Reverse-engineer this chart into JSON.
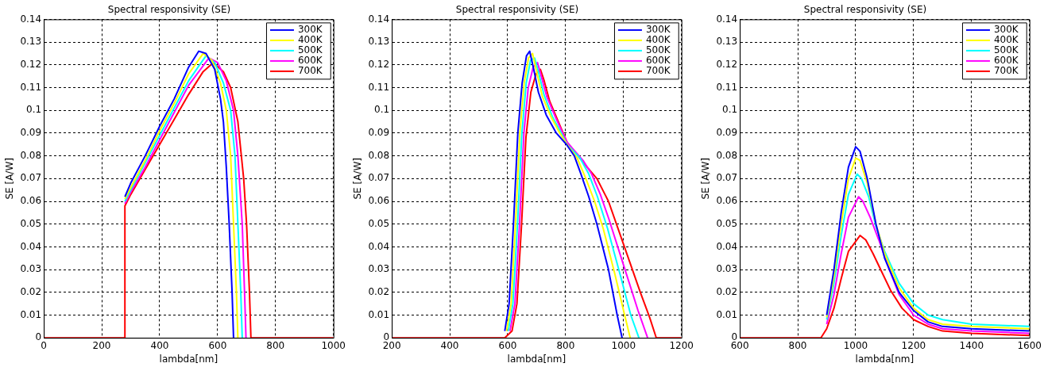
{
  "chart_data": [
    {
      "type": "line",
      "title": "Spectral responsivity (SE)",
      "xlabel": "lambda[nm]",
      "ylabel": "SE [A/W]",
      "xlim": [
        0,
        1000
      ],
      "ylim": [
        0,
        0.14
      ],
      "xticks": [
        0,
        200,
        400,
        600,
        800,
        1000
      ],
      "yticks": [
        0,
        0.01,
        0.02,
        0.03,
        0.04,
        0.05,
        0.06,
        0.07,
        0.08,
        0.09,
        0.1,
        0.11,
        0.12,
        0.13,
        0.14
      ],
      "grid": true,
      "legend": "top right",
      "series": [
        {
          "name": "300K",
          "color": "#0000ff",
          "x": [
            280,
            300,
            350,
            400,
            450,
            500,
            535,
            560,
            590,
            610,
            620,
            630,
            640,
            650,
            655
          ],
          "values": [
            0.062,
            0.068,
            0.08,
            0.093,
            0.105,
            0.119,
            0.126,
            0.125,
            0.118,
            0.105,
            0.095,
            0.075,
            0.05,
            0.02,
            0
          ]
        },
        {
          "name": "400K",
          "color": "#ffff00",
          "x": [
            280,
            300,
            350,
            400,
            450,
            500,
            550,
            580,
            610,
            630,
            645,
            655,
            665,
            670
          ],
          "values": [
            0.061,
            0.066,
            0.078,
            0.091,
            0.103,
            0.116,
            0.125,
            0.122,
            0.112,
            0.1,
            0.08,
            0.05,
            0.02,
            0
          ]
        },
        {
          "name": "500K",
          "color": "#00ffff",
          "x": [
            280,
            300,
            350,
            400,
            450,
            500,
            560,
            590,
            620,
            645,
            660,
            670,
            680,
            685
          ],
          "values": [
            0.06,
            0.065,
            0.077,
            0.089,
            0.101,
            0.113,
            0.124,
            0.121,
            0.112,
            0.1,
            0.08,
            0.05,
            0.02,
            0
          ]
        },
        {
          "name": "600K",
          "color": "#ff00ff",
          "x": [
            280,
            300,
            350,
            400,
            450,
            500,
            570,
            600,
            630,
            655,
            670,
            685,
            693,
            698
          ],
          "values": [
            0.059,
            0.064,
            0.075,
            0.087,
            0.099,
            0.111,
            0.123,
            0.121,
            0.113,
            0.1,
            0.08,
            0.05,
            0.02,
            0
          ]
        },
        {
          "name": "700K",
          "color": "#ff0000",
          "x": [
            0,
            280,
            280,
            300,
            350,
            400,
            450,
            500,
            550,
            585,
            620,
            645,
            670,
            690,
            700,
            710,
            715,
            1000
          ],
          "values": [
            0,
            0,
            0.058,
            0.063,
            0.074,
            0.085,
            0.096,
            0.107,
            0.117,
            0.121,
            0.117,
            0.11,
            0.095,
            0.07,
            0.05,
            0.02,
            0,
            0
          ]
        }
      ]
    },
    {
      "type": "line",
      "title": "Spectral responsivity (SE)",
      "xlabel": "lambda[nm]",
      "ylabel": "SE [A/W]",
      "xlim": [
        200,
        1200
      ],
      "ylim": [
        0,
        0.14
      ],
      "xticks": [
        200,
        400,
        600,
        800,
        1000,
        1200
      ],
      "yticks": [
        0,
        0.01,
        0.02,
        0.03,
        0.04,
        0.05,
        0.06,
        0.07,
        0.08,
        0.09,
        0.1,
        0.11,
        0.12,
        0.13,
        0.14
      ],
      "grid": true,
      "legend": "top right",
      "series": [
        {
          "name": "300K",
          "color": "#0000ff",
          "x": [
            590,
            605,
            620,
            635,
            650,
            665,
            676,
            690,
            706,
            733,
            768,
            803,
            830,
            853,
            880,
            908,
            948,
            978,
            995
          ],
          "values": [
            0.003,
            0.015,
            0.05,
            0.09,
            0.112,
            0.124,
            0.126,
            0.118,
            0.108,
            0.098,
            0.09,
            0.085,
            0.08,
            0.072,
            0.062,
            0.05,
            0.03,
            0.01,
            0
          ]
        },
        {
          "name": "400K",
          "color": "#ffff00",
          "x": [
            596,
            612,
            627,
            642,
            657,
            672,
            686,
            700,
            720,
            750,
            780,
            805,
            840,
            870,
            900,
            930,
            970,
            1000,
            1023
          ],
          "values": [
            0.003,
            0.015,
            0.05,
            0.09,
            0.112,
            0.123,
            0.125,
            0.117,
            0.106,
            0.097,
            0.09,
            0.085,
            0.079,
            0.07,
            0.06,
            0.048,
            0.028,
            0.012,
            0
          ]
        },
        {
          "name": "500K",
          "color": "#00ffff",
          "x": [
            602,
            618,
            634,
            649,
            664,
            679,
            693,
            706,
            725,
            755,
            785,
            805,
            850,
            880,
            910,
            945,
            990,
            1025,
            1053
          ],
          "values": [
            0.003,
            0.015,
            0.05,
            0.09,
            0.112,
            0.122,
            0.123,
            0.117,
            0.107,
            0.097,
            0.09,
            0.085,
            0.079,
            0.072,
            0.062,
            0.048,
            0.027,
            0.01,
            0
          ]
        },
        {
          "name": "600K",
          "color": "#ff00ff",
          "x": [
            608,
            625,
            641,
            656,
            671,
            688,
            703,
            716,
            735,
            765,
            790,
            805,
            860,
            890,
            920,
            950,
            1000,
            1050,
            1083
          ],
          "values": [
            0.003,
            0.015,
            0.05,
            0.09,
            0.11,
            0.119,
            0.121,
            0.115,
            0.106,
            0.097,
            0.09,
            0.086,
            0.078,
            0.072,
            0.063,
            0.052,
            0.032,
            0.012,
            0
          ]
        },
        {
          "name": "700K",
          "color": "#ff0000",
          "x": [
            200,
            590,
            615,
            632,
            648,
            663,
            680,
            698,
            713,
            726,
            745,
            775,
            805,
            868,
            908,
            948,
            1003,
            1058,
            1090,
            1113,
            1200
          ],
          "values": [
            0,
            0,
            0.003,
            0.015,
            0.05,
            0.088,
            0.108,
            0.116,
            0.118,
            0.113,
            0.104,
            0.095,
            0.086,
            0.076,
            0.07,
            0.06,
            0.04,
            0.02,
            0.009,
            0,
            0
          ]
        }
      ]
    },
    {
      "type": "line",
      "title": "Spectral responsivity (SE)",
      "xlabel": "lambda[nm]",
      "ylabel": "SE [A/W]",
      "xlim": [
        600,
        1600
      ],
      "ylim": [
        0,
        0.14
      ],
      "xticks": [
        600,
        800,
        1000,
        1200,
        1400,
        1600
      ],
      "yticks": [
        0,
        0.01,
        0.02,
        0.03,
        0.04,
        0.05,
        0.06,
        0.07,
        0.08,
        0.09,
        0.1,
        0.11,
        0.12,
        0.13,
        0.14
      ],
      "grid": true,
      "legend": "top right",
      "series": [
        {
          "name": "300K",
          "color": "#0000ff",
          "x": [
            900,
            925,
            950,
            975,
            1000,
            1015,
            1040,
            1070,
            1100,
            1150,
            1200,
            1250,
            1300,
            1400,
            1600
          ],
          "values": [
            0.01,
            0.03,
            0.055,
            0.075,
            0.084,
            0.082,
            0.07,
            0.05,
            0.035,
            0.02,
            0.012,
            0.007,
            0.005,
            0.004,
            0.003
          ]
        },
        {
          "name": "400K",
          "color": "#ffff00",
          "x": [
            900,
            925,
            950,
            975,
            1000,
            1015,
            1040,
            1070,
            1100,
            1150,
            1200,
            1250,
            1300,
            1400,
            1600
          ],
          "values": [
            0.009,
            0.027,
            0.05,
            0.07,
            0.079,
            0.078,
            0.068,
            0.05,
            0.037,
            0.022,
            0.013,
            0.008,
            0.006,
            0.005,
            0.004
          ]
        },
        {
          "name": "500K",
          "color": "#00ffff",
          "x": [
            900,
            925,
            950,
            975,
            1005,
            1020,
            1045,
            1070,
            1100,
            1150,
            1200,
            1250,
            1300,
            1400,
            1600
          ],
          "values": [
            0.008,
            0.024,
            0.045,
            0.063,
            0.072,
            0.07,
            0.062,
            0.049,
            0.038,
            0.024,
            0.015,
            0.01,
            0.008,
            0.006,
            0.005
          ]
        },
        {
          "name": "600K",
          "color": "#ff00ff",
          "x": [
            900,
            925,
            950,
            975,
            1010,
            1025,
            1050,
            1080,
            1110,
            1150,
            1200,
            1250,
            1300,
            1400,
            1600
          ],
          "values": [
            0.006,
            0.019,
            0.037,
            0.053,
            0.062,
            0.06,
            0.053,
            0.043,
            0.032,
            0.019,
            0.01,
            0.006,
            0.004,
            0.003,
            0.002
          ]
        },
        {
          "name": "700K",
          "color": "#ff0000",
          "x": [
            600,
            880,
            900,
            925,
            950,
            975,
            1015,
            1035,
            1060,
            1090,
            1120,
            1160,
            1200,
            1250,
            1300,
            1400,
            1600
          ],
          "values": [
            0,
            0,
            0.004,
            0.013,
            0.026,
            0.038,
            0.045,
            0.043,
            0.037,
            0.029,
            0.021,
            0.013,
            0.008,
            0.005,
            0.003,
            0.002,
            0.001
          ]
        }
      ]
    }
  ]
}
